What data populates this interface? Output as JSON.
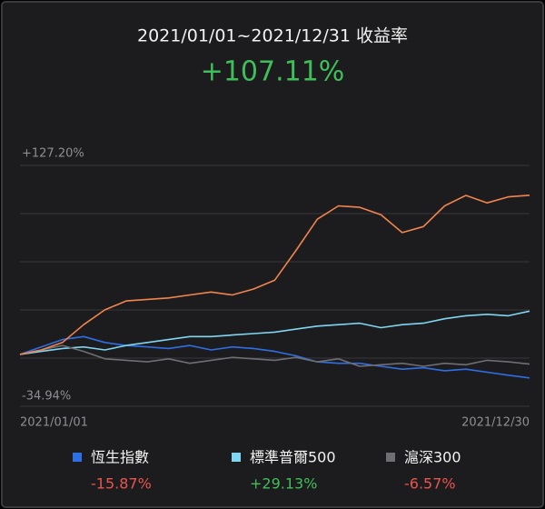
{
  "chart_data": {
    "type": "line",
    "title": "2021/01/01~2021/12/31 收益率",
    "headline": "+107.11%",
    "categories": [
      "2021/01/01",
      null,
      null,
      null,
      null,
      null,
      null,
      null,
      null,
      null,
      null,
      null,
      null,
      null,
      null,
      null,
      null,
      null,
      null,
      null,
      null,
      null,
      null,
      null,
      "2021/12/30"
    ],
    "ylim": [
      -34.94,
      127.2
    ],
    "yticks": [
      {
        "value": 127.2,
        "label": "+127.20%"
      },
      {
        "value": -34.94,
        "label": "-34.94%"
      }
    ],
    "ygrid": [
      94.77,
      62.34,
      29.91,
      -2.52
    ],
    "grid": true,
    "series": [
      {
        "color": "#f2844f",
        "values": [
          0,
          3,
          8,
          20,
          30,
          36,
          37,
          38,
          40,
          42,
          40,
          44,
          50,
          70,
          91,
          100,
          99,
          94,
          82,
          86,
          100,
          107,
          102,
          106,
          107.11
        ]
      },
      {
        "name": "恆生指數",
        "color": "#2f6fe4",
        "change_label": "-15.87%",
        "values": [
          0,
          5,
          10,
          12,
          8,
          6,
          5,
          4,
          6,
          3,
          5,
          4,
          2,
          -1,
          -5,
          -6,
          -6,
          -8,
          -10,
          -9,
          -11,
          -10,
          -12,
          -14,
          -15.87
        ]
      },
      {
        "name": "標準普爾500",
        "color": "#7fd6f0",
        "change_label": "+29.13%",
        "values": [
          0,
          2,
          4,
          5,
          3,
          6,
          8,
          10,
          12,
          12,
          13,
          14,
          15,
          17,
          19,
          20,
          21,
          18,
          20,
          21,
          24,
          26,
          27,
          26,
          29.13
        ]
      },
      {
        "name": "滬深300",
        "color": "#6e6e74",
        "change_label": "-6.57%",
        "values": [
          0,
          3,
          6,
          2,
          -3,
          -4,
          -5,
          -3,
          -6,
          -4,
          -2,
          -3,
          -4,
          -2,
          -5,
          -3,
          -8,
          -7,
          -6,
          -8,
          -6,
          -7,
          -4,
          -5,
          -6.57
        ]
      }
    ]
  }
}
